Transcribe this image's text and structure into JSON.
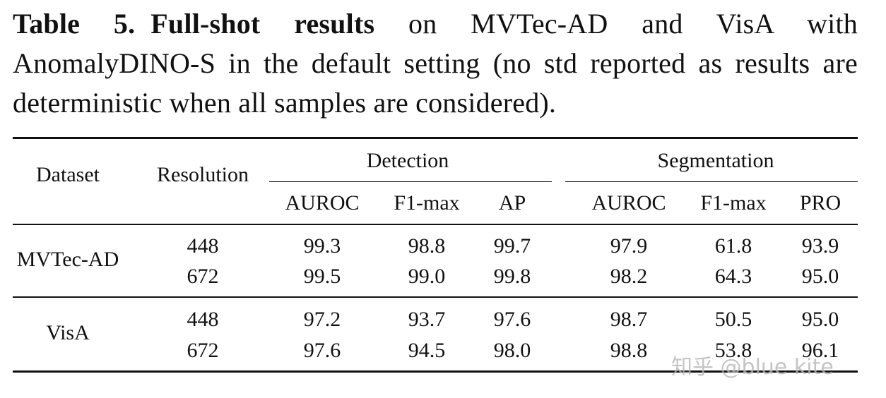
{
  "caption": {
    "label": "Table 5.",
    "bold": "Full-shot results",
    "rest": " on MVTec-AD and VisA with AnomalyDINO-S in the default setting (no std reported as results are deterministic when all samples are considered)."
  },
  "table": {
    "headers": {
      "dataset": "Dataset",
      "resolution": "Resolution",
      "detection": "Detection",
      "segmentation": "Segmentation",
      "metrics": [
        "AUROC",
        "F1-max",
        "AP",
        "AUROC",
        "F1-max",
        "PRO"
      ]
    },
    "groups": [
      {
        "dataset": "MVTec-AD",
        "rows": [
          {
            "resolution": "448",
            "values": [
              "99.3",
              "98.8",
              "99.7",
              "97.9",
              "61.8",
              "93.9"
            ]
          },
          {
            "resolution": "672",
            "values": [
              "99.5",
              "99.0",
              "99.8",
              "98.2",
              "64.3",
              "95.0"
            ]
          }
        ]
      },
      {
        "dataset": "VisA",
        "rows": [
          {
            "resolution": "448",
            "values": [
              "97.2",
              "93.7",
              "97.6",
              "98.7",
              "50.5",
              "95.0"
            ]
          },
          {
            "resolution": "672",
            "values": [
              "97.6",
              "94.5",
              "98.0",
              "98.8",
              "53.8",
              "96.1"
            ]
          }
        ]
      }
    ]
  },
  "watermark": "知乎 @blue kite"
}
